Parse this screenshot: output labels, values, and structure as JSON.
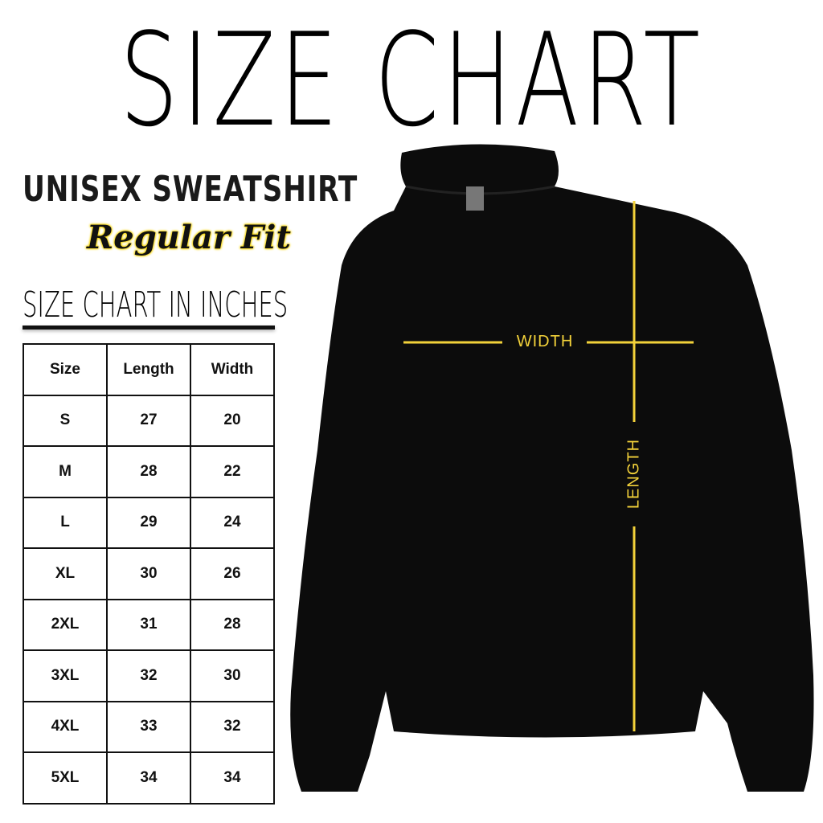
{
  "title": "SIZE CHART",
  "product": "UNISEX SWEATSHIRT",
  "fit": "Regular Fit",
  "subtitle": "SIZE CHART IN INCHES",
  "table": {
    "headers": [
      "Size",
      "Length",
      "Width"
    ],
    "rows": [
      [
        "S",
        "27",
        "20"
      ],
      [
        "M",
        "28",
        "22"
      ],
      [
        "L",
        "29",
        "24"
      ],
      [
        "XL",
        "30",
        "26"
      ],
      [
        "2XL",
        "31",
        "28"
      ],
      [
        "3XL",
        "32",
        "30"
      ],
      [
        "4XL",
        "33",
        "32"
      ],
      [
        "5XL",
        "34",
        "34"
      ]
    ]
  },
  "diagram": {
    "width_label": "WIDTH",
    "length_label": "LENGTH",
    "line_color": "#f3d23a",
    "garment_color": "#0c0c0c"
  }
}
